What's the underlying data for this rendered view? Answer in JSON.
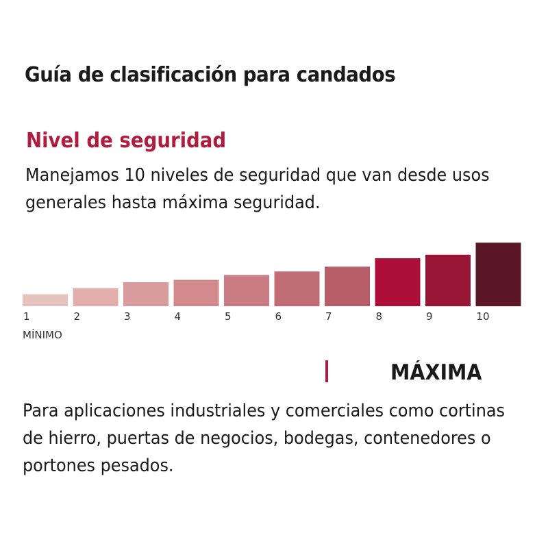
{
  "title": "Guía de clasificación para candados",
  "section_title": "Nivel de seguridad",
  "description": "Manejamos 10 niveles de seguridad que van desde usos generales hasta máxima seguridad.",
  "chart_data": {
    "type": "bar",
    "categories": [
      "1",
      "2",
      "3",
      "4",
      "5",
      "6",
      "7",
      "8",
      "9",
      "10"
    ],
    "values": [
      1.0,
      1.5,
      2.0,
      2.2,
      2.6,
      2.9,
      3.3,
      4.0,
      4.3,
      5.3
    ],
    "bar_colors": [
      "#e7c3bf",
      "#e1aeac",
      "#d99c9c",
      "#d28a8d",
      "#c97c82",
      "#c06d75",
      "#b75e69",
      "#ae0f3a",
      "#991636",
      "#5a1624"
    ],
    "min_label": "MÍNIMO",
    "ylim": [
      0,
      6
    ],
    "grid": false,
    "legend": "none"
  },
  "selected_level": {
    "name": "MÁXIMA",
    "marker_color": "#b01c3e",
    "description": "Para aplicaciones industriales y comerciales como cortinas de hierro, puertas de negocios, bodegas, contenedores o portones pesados."
  },
  "colors": {
    "accent": "#b01c3e",
    "text": "#1a1a1a",
    "tick_text": "#333333"
  }
}
